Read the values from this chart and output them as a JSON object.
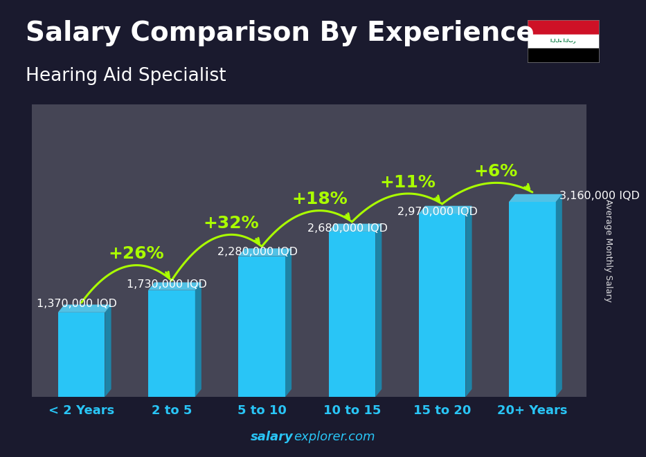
{
  "title": "Salary Comparison By Experience",
  "subtitle": "Hearing Aid Specialist",
  "categories": [
    "< 2 Years",
    "2 to 5",
    "5 to 10",
    "10 to 15",
    "15 to 20",
    "20+ Years"
  ],
  "values": [
    1370000,
    1730000,
    2280000,
    2680000,
    2970000,
    3160000
  ],
  "labels": [
    "1,370,000 IQD",
    "1,730,000 IQD",
    "2,280,000 IQD",
    "2,680,000 IQD",
    "2,970,000 IQD",
    "3,160,000 IQD"
  ],
  "pct_changes": [
    "+26%",
    "+32%",
    "+18%",
    "+11%",
    "+6%"
  ],
  "bar_color": "#29c5f6",
  "bar_right_color": "#1a8ab0",
  "bar_top_color": "#55d8ff",
  "pct_color": "#aaff00",
  "text_color": "#ffffff",
  "xticklabel_color": "#29c5f6",
  "overlay_color": "#1a1a2e",
  "overlay_alpha": 0.55,
  "ylabel": "Average Monthly Salary",
  "watermark_normal": "explorer.com",
  "watermark_bold": "salary",
  "title_fontsize": 28,
  "subtitle_fontsize": 19,
  "label_fontsize": 11.5,
  "pct_fontsize": 18,
  "axis_fontsize": 13,
  "bar_width": 0.52,
  "ylim_factor": 1.5
}
